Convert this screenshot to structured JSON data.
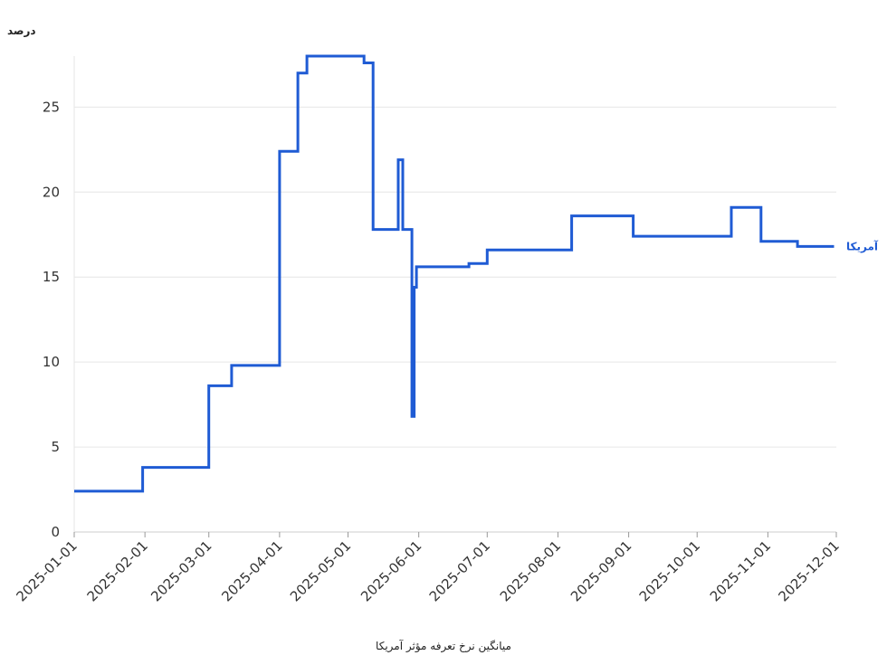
{
  "chart_data": {
    "type": "line",
    "step": true,
    "ylabel": "درصد",
    "xlabel": "میانگین نرخ تعرفه مؤثر آمریکا",
    "ylim": [
      0,
      28
    ],
    "yticks": [
      "0",
      "5",
      "10",
      "15",
      "20",
      "25"
    ],
    "xlim": [
      "2025-01-01",
      "2025-12-01"
    ],
    "xticks": [
      "2025-01-01",
      "2025-02-01",
      "2025-03-01",
      "2025-04-01",
      "2025-05-01",
      "2025-06-01",
      "2025-07-01",
      "2025-08-01",
      "2025-09-01",
      "2025-10-01",
      "2025-11-01",
      "2025-12-01"
    ],
    "grid": "horizontal",
    "series": [
      {
        "name": "آمریکا",
        "color": "#1f5bd4",
        "points": [
          [
            "2025-01-01",
            2.4
          ],
          [
            "2025-01-31",
            3.8
          ],
          [
            "2025-03-01",
            8.6
          ],
          [
            "2025-03-11",
            9.8
          ],
          [
            "2025-04-01",
            22.4
          ],
          [
            "2025-04-09",
            27.0
          ],
          [
            "2025-04-13",
            28.0
          ],
          [
            "2025-05-08",
            27.6
          ],
          [
            "2025-05-12",
            17.8
          ],
          [
            "2025-05-23",
            21.9
          ],
          [
            "2025-05-25",
            17.8
          ],
          [
            "2025-05-29",
            6.8
          ],
          [
            "2025-05-30",
            14.4
          ],
          [
            "2025-05-31",
            15.6
          ],
          [
            "2025-06-23",
            15.8
          ],
          [
            "2025-07-01",
            16.6
          ],
          [
            "2025-08-07",
            18.6
          ],
          [
            "2025-09-03",
            17.4
          ],
          [
            "2025-10-16",
            19.1
          ],
          [
            "2025-10-29",
            17.1
          ],
          [
            "2025-11-14",
            16.8
          ],
          [
            "2025-11-30",
            16.8
          ]
        ]
      }
    ]
  }
}
